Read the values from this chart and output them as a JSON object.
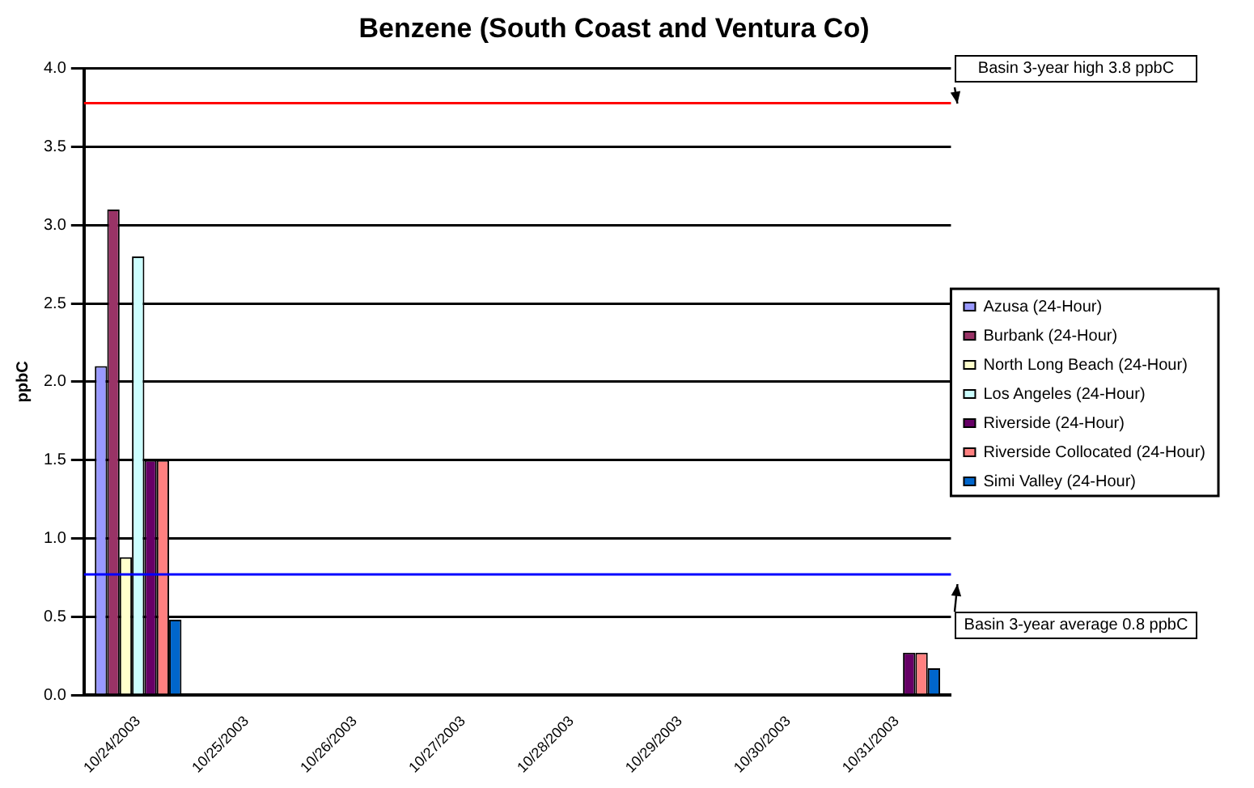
{
  "chart_data": {
    "type": "bar",
    "title": "Benzene (South Coast and Ventura Co)",
    "ylabel": "ppbC",
    "categories": [
      "10/24/2003",
      "10/25/2003",
      "10/26/2003",
      "10/27/2003",
      "10/28/2003",
      "10/29/2003",
      "10/30/2003",
      "10/31/2003"
    ],
    "series": [
      {
        "name": "Azusa (24-Hour)",
        "color": "#9999ff",
        "values": [
          2.1,
          null,
          null,
          null,
          null,
          null,
          null,
          null
        ]
      },
      {
        "name": "Burbank (24-Hour)",
        "color": "#993366",
        "values": [
          3.1,
          null,
          null,
          null,
          null,
          null,
          null,
          null
        ]
      },
      {
        "name": "North Long Beach (24-Hour)",
        "color": "#ffffcc",
        "values": [
          0.88,
          null,
          null,
          null,
          null,
          null,
          null,
          null
        ]
      },
      {
        "name": "Los Angeles (24-Hour)",
        "color": "#ccffff",
        "values": [
          2.8,
          null,
          null,
          null,
          null,
          null,
          null,
          null
        ]
      },
      {
        "name": "Riverside (24-Hour)",
        "color": "#660066",
        "values": [
          1.5,
          null,
          null,
          null,
          null,
          null,
          null,
          0.27
        ]
      },
      {
        "name": "Riverside Collocated (24-Hour)",
        "color": "#ff8080",
        "values": [
          1.5,
          null,
          null,
          null,
          null,
          null,
          null,
          0.27
        ]
      },
      {
        "name": "Simi Valley (24-Hour)",
        "color": "#0066cc",
        "values": [
          0.48,
          null,
          null,
          null,
          null,
          null,
          null,
          0.17
        ]
      }
    ],
    "ylim": [
      0,
      4
    ],
    "yticks": [
      {
        "value": 0,
        "label": "0.0"
      },
      0.5,
      {
        "value": 1,
        "label": "1.0"
      },
      1.5,
      {
        "value": 2,
        "label": "2.0"
      },
      2.5,
      {
        "value": 3,
        "label": "3.0"
      },
      3.5,
      {
        "value": 4,
        "label": "4.0"
      }
    ],
    "grid": "y",
    "legend": "right",
    "ref_lines": [
      {
        "axis": "y",
        "value": 3.78,
        "label": "Basin 3-year high 3.8 ppbC",
        "color": "#ff0000"
      },
      {
        "axis": "y",
        "value": 0.77,
        "label": "Basin 3-year average  0.8 ppbC",
        "color": "#0000ff"
      }
    ]
  }
}
